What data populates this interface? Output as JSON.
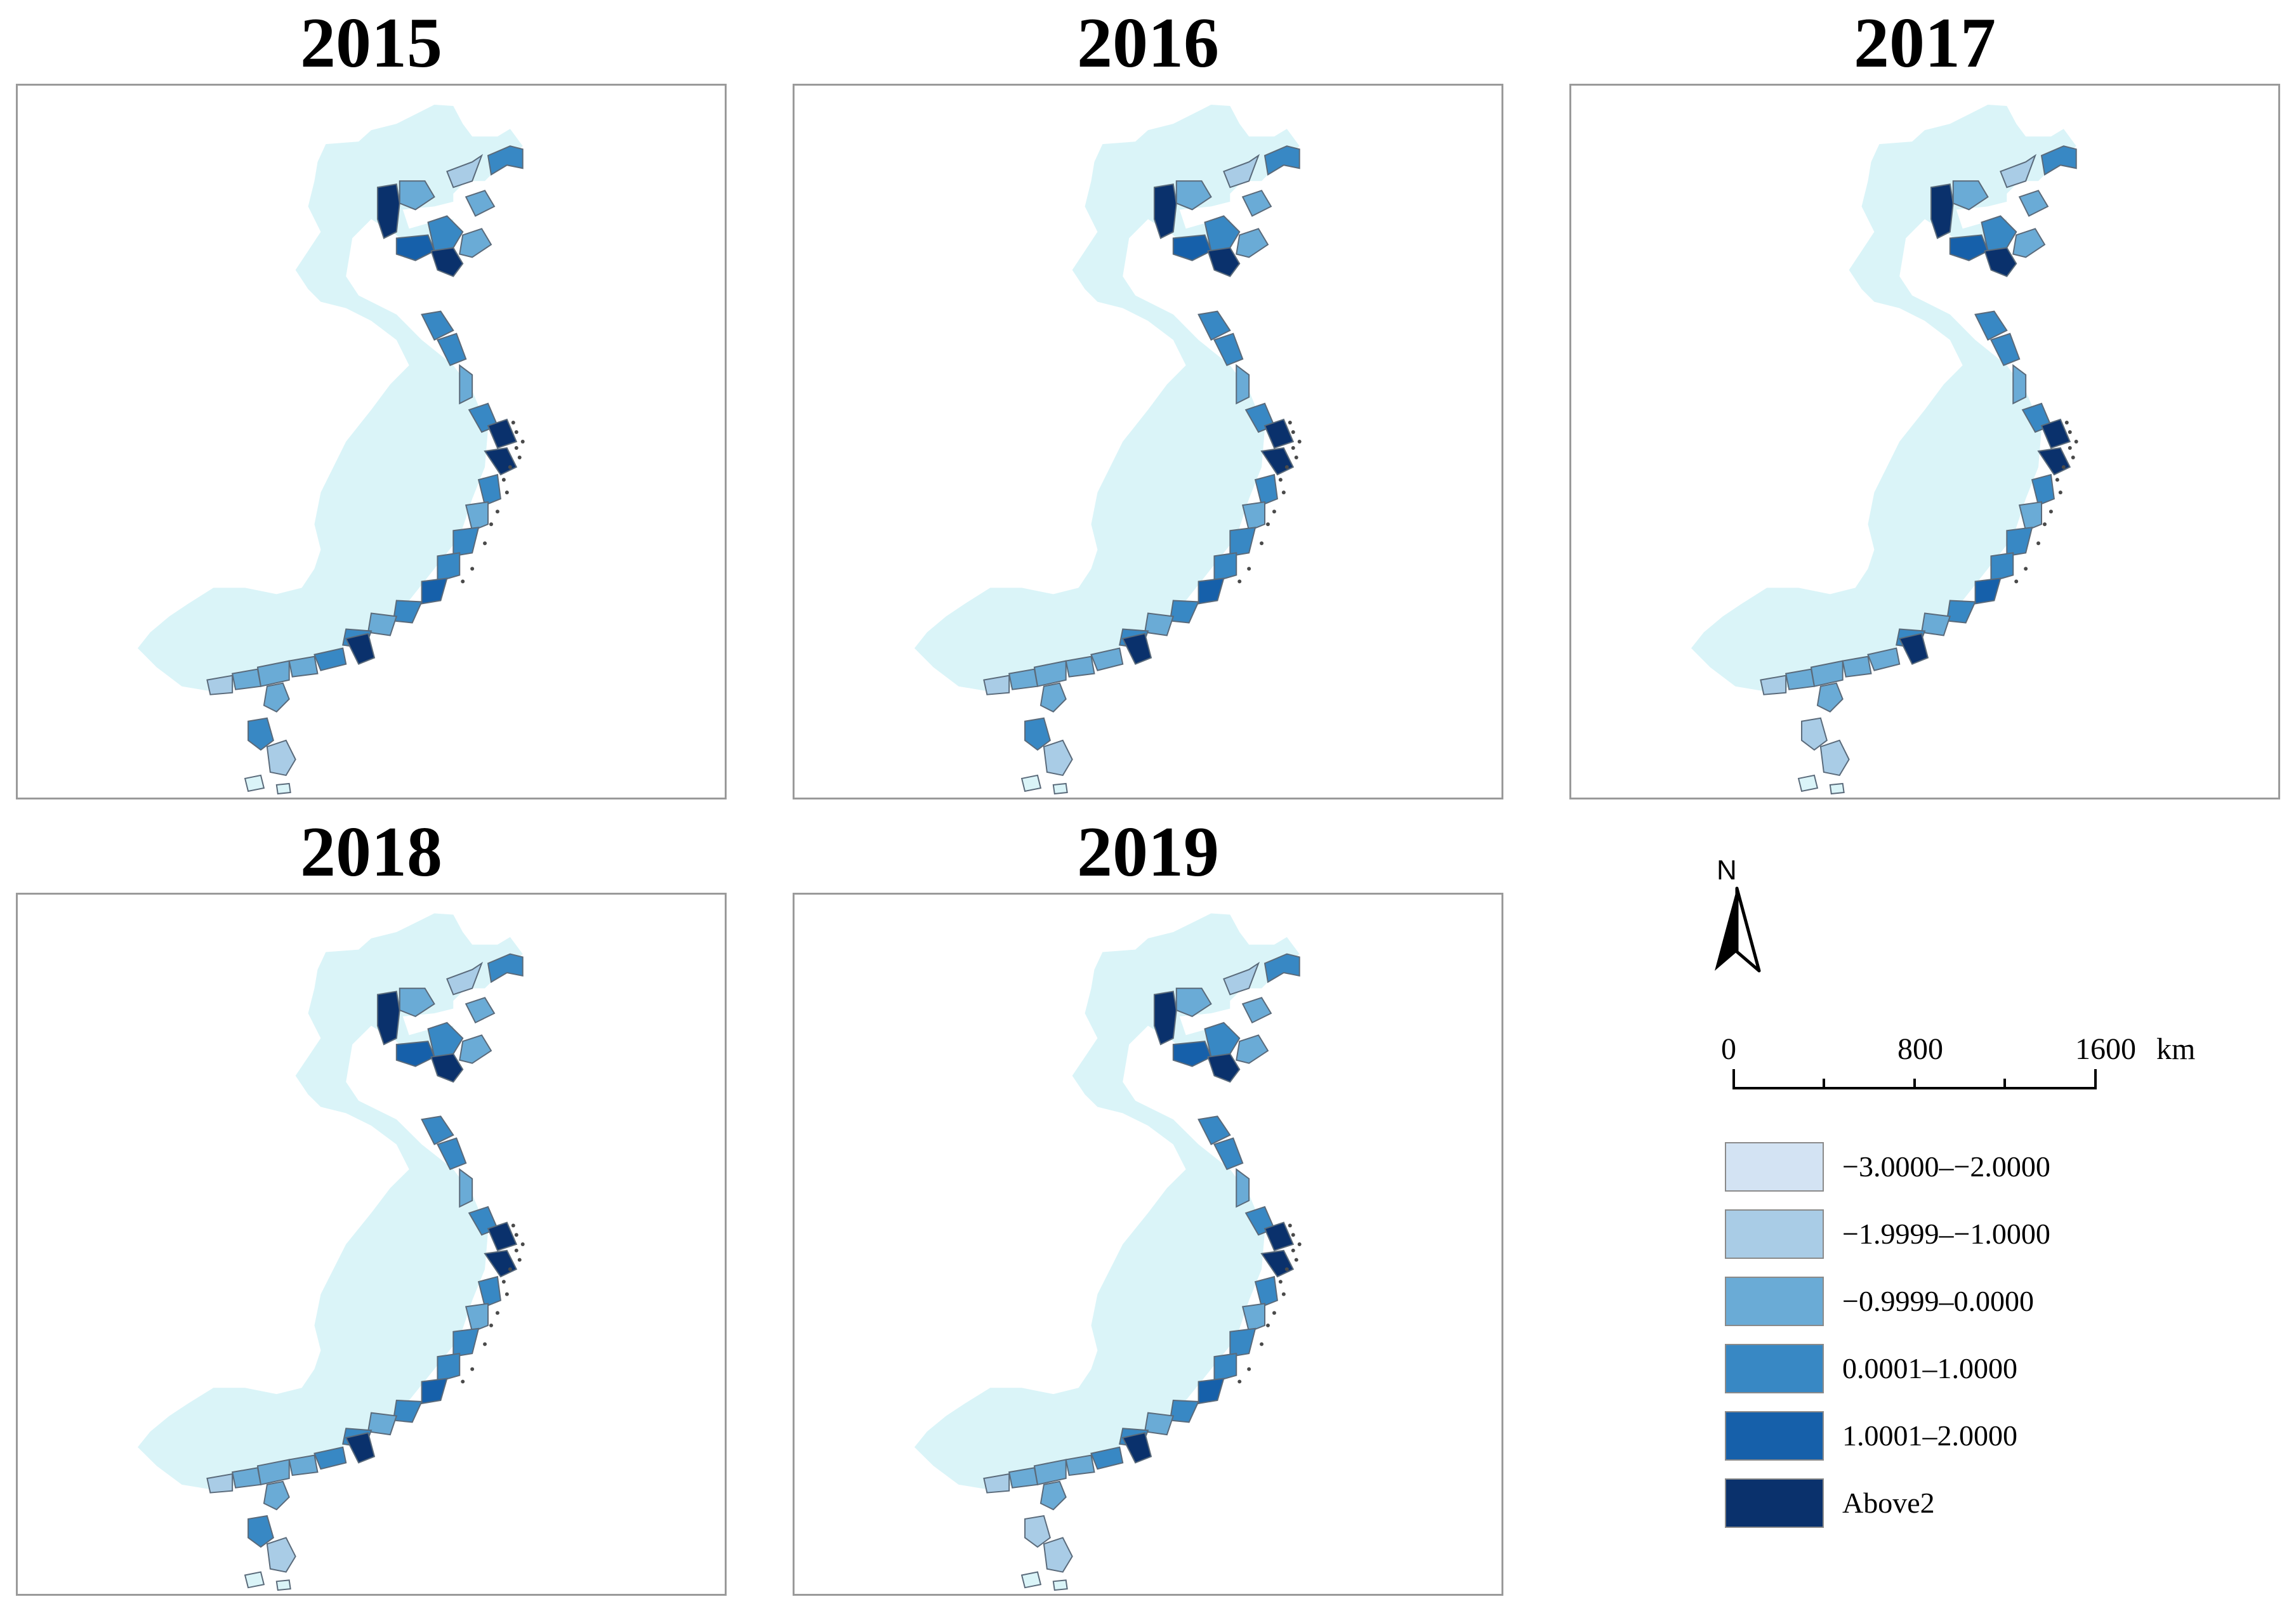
{
  "panels": [
    {
      "year": "2015",
      "classes": [
        5,
        2,
        1,
        3,
        2,
        3,
        4,
        2,
        5,
        3,
        3,
        2,
        3,
        5,
        5,
        3,
        2,
        3,
        3,
        4,
        3,
        2,
        3,
        5,
        3,
        2,
        2,
        2,
        1,
        2,
        3
      ]
    },
    {
      "year": "2016",
      "classes": [
        5,
        2,
        1,
        3,
        2,
        3,
        4,
        2,
        5,
        3,
        3,
        2,
        3,
        5,
        5,
        3,
        2,
        3,
        3,
        4,
        3,
        2,
        3,
        5,
        2,
        2,
        2,
        2,
        1,
        2,
        3
      ]
    },
    {
      "year": "2017",
      "classes": [
        5,
        2,
        1,
        3,
        2,
        3,
        4,
        2,
        5,
        3,
        3,
        2,
        3,
        5,
        5,
        3,
        2,
        3,
        3,
        4,
        3,
        2,
        3,
        5,
        2,
        2,
        2,
        2,
        1,
        2,
        1
      ]
    },
    {
      "year": "2018",
      "classes": [
        5,
        2,
        1,
        3,
        2,
        3,
        4,
        2,
        5,
        3,
        3,
        2,
        3,
        5,
        5,
        3,
        2,
        3,
        3,
        4,
        3,
        2,
        3,
        5,
        3,
        2,
        2,
        2,
        1,
        2,
        3
      ]
    },
    {
      "year": "2019",
      "classes": [
        5,
        2,
        1,
        3,
        2,
        3,
        4,
        2,
        5,
        3,
        3,
        2,
        3,
        5,
        5,
        3,
        2,
        3,
        3,
        4,
        3,
        2,
        3,
        5,
        3,
        2,
        2,
        2,
        1,
        2,
        1
      ]
    }
  ],
  "legend": {
    "north_label": "N",
    "scale_labels": [
      "0",
      "800",
      "1600",
      "km"
    ],
    "items": [
      {
        "label": "−3.0000–−2.0000",
        "color": "#d3e3f3"
      },
      {
        "label": "−1.9999–−1.0000",
        "color": "#a9cce6"
      },
      {
        "label": "−0.9999–0.0000",
        "color": "#6aabd6"
      },
      {
        "label": "0.0001–1.0000",
        "color": "#3888c4"
      },
      {
        "label": "1.0001–2.0000",
        "color": "#1660aa"
      },
      {
        "label": "Above2",
        "color": "#0a316c"
      }
    ]
  },
  "colors": {
    "hinterland": "#daf4f8",
    "outline": "#5a6a7a"
  }
}
